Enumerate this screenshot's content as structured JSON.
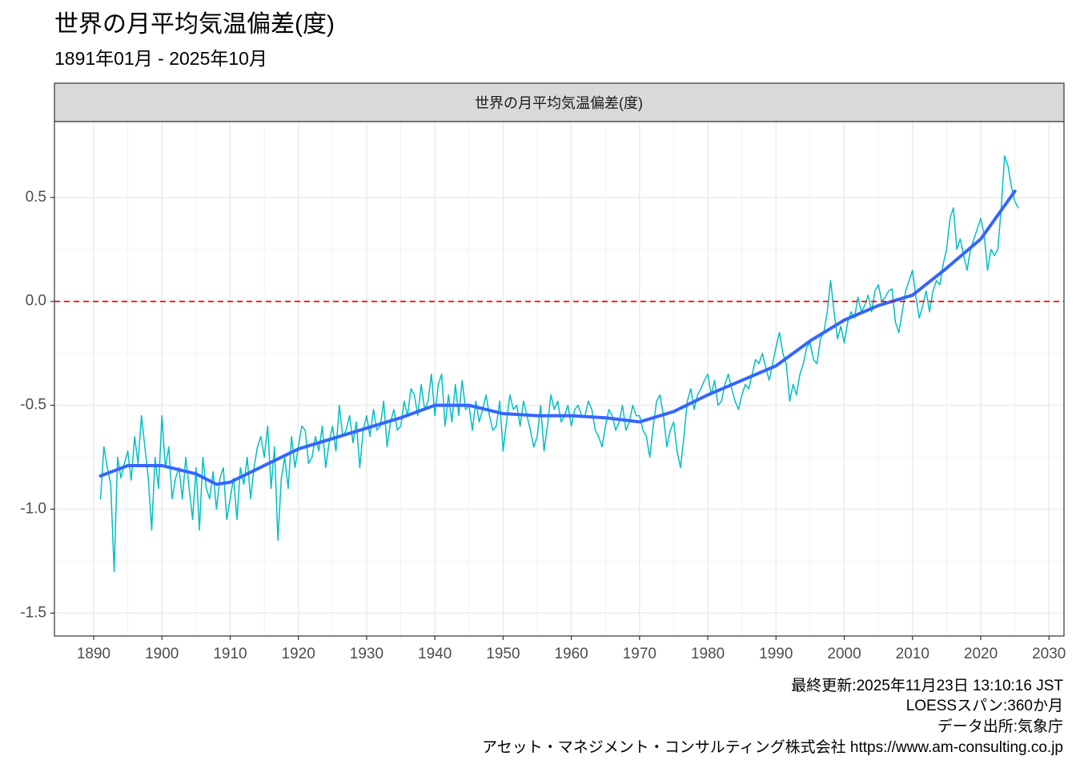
{
  "chart_data": {
    "type": "line",
    "title": "世界の月平均気温偏差(度)",
    "subtitle": "1891年01月 - 2025年10月",
    "panel_label": "世界の月平均気温偏差(度)",
    "caption": [
      "最終更新:2025年11月23日 13:10:16 JST",
      "LOESSスパン:360か月",
      "データ出所:気象庁",
      "アセット・マネジメント・コンサルティング株式会社 https://www.am-consulting.co.jp"
    ],
    "xlim": [
      1884.25,
      2032.2
    ],
    "xticks": [
      1890,
      1900,
      1910,
      1920,
      1930,
      1940,
      1950,
      1960,
      1970,
      1980,
      1990,
      2000,
      2010,
      2020,
      2030
    ],
    "ylim": [
      -1.61,
      0.865
    ],
    "yticks": [
      {
        "value": -1.5,
        "label": "-1.5"
      },
      {
        "value": -1,
        "label": "-1.0"
      },
      {
        "value": -0.5,
        "label": "-0.5"
      },
      {
        "value": 0,
        "label": "0.0"
      },
      {
        "value": 0.5,
        "label": "0.5"
      }
    ],
    "grid": true,
    "hline": {
      "value": 0,
      "color": "#ff0000"
    },
    "series": [
      {
        "color": "#00bfc4",
        "width": 1.5,
        "x": [
          1891,
          1891.5,
          1892,
          1892.5,
          1893,
          1893.5,
          1894,
          1894.5,
          1895,
          1895.5,
          1896,
          1896.5,
          1897,
          1897.5,
          1898,
          1898.5,
          1899,
          1899.5,
          1900,
          1900.5,
          1901,
          1901.5,
          1902,
          1902.5,
          1903,
          1903.5,
          1904,
          1904.5,
          1905,
          1905.5,
          1906,
          1906.5,
          1907,
          1907.5,
          1908,
          1908.5,
          1909,
          1909.5,
          1910,
          1910.5,
          1911,
          1911.5,
          1912,
          1912.5,
          1913,
          1913.5,
          1914,
          1914.5,
          1915,
          1915.5,
          1916,
          1916.5,
          1917,
          1917.5,
          1918,
          1918.5,
          1919,
          1919.5,
          1920,
          1920.5,
          1921,
          1921.5,
          1922,
          1922.5,
          1923,
          1923.5,
          1924,
          1924.5,
          1925,
          1925.5,
          1926,
          1926.5,
          1927,
          1927.5,
          1928,
          1928.5,
          1929,
          1929.5,
          1930,
          1930.5,
          1931,
          1931.5,
          1932,
          1932.5,
          1933,
          1933.5,
          1934,
          1934.5,
          1935,
          1935.5,
          1936,
          1936.5,
          1937,
          1937.5,
          1938,
          1938.5,
          1939,
          1939.5,
          1940,
          1940.5,
          1941,
          1941.5,
          1942,
          1942.5,
          1943,
          1943.5,
          1944,
          1944.5,
          1945,
          1945.5,
          1946,
          1946.5,
          1947,
          1947.5,
          1948,
          1948.5,
          1949,
          1949.5,
          1950,
          1950.5,
          1951,
          1951.5,
          1952,
          1952.5,
          1953,
          1953.5,
          1954,
          1954.5,
          1955,
          1955.5,
          1956,
          1956.5,
          1957,
          1957.5,
          1958,
          1958.5,
          1959,
          1959.5,
          1960,
          1960.5,
          1961,
          1961.5,
          1962,
          1962.5,
          1963,
          1963.5,
          1964,
          1964.5,
          1965,
          1965.5,
          1966,
          1966.5,
          1967,
          1967.5,
          1968,
          1968.5,
          1969,
          1969.5,
          1970,
          1970.5,
          1971,
          1971.5,
          1972,
          1972.5,
          1973,
          1973.5,
          1974,
          1974.5,
          1975,
          1975.5,
          1976,
          1976.5,
          1977,
          1977.5,
          1978,
          1978.5,
          1979,
          1979.5,
          1980,
          1980.5,
          1981,
          1981.5,
          1982,
          1982.5,
          1983,
          1983.5,
          1984,
          1984.5,
          1985,
          1985.5,
          1986,
          1986.5,
          1987,
          1987.5,
          1988,
          1988.5,
          1989,
          1989.5,
          1990,
          1990.5,
          1991,
          1991.5,
          1992,
          1992.5,
          1993,
          1993.5,
          1994,
          1994.5,
          1995,
          1995.5,
          1996,
          1996.5,
          1997,
          1997.5,
          1998,
          1998.5,
          1999,
          1999.5,
          2000,
          2000.5,
          2001,
          2001.5,
          2002,
          2002.5,
          2003,
          2003.5,
          2004,
          2004.5,
          2005,
          2005.5,
          2006,
          2006.5,
          2007,
          2007.5,
          2008,
          2008.5,
          2009,
          2009.5,
          2010,
          2010.5,
          2011,
          2011.5,
          2012,
          2012.5,
          2013,
          2013.5,
          2014,
          2014.5,
          2015,
          2015.5,
          2016,
          2016.5,
          2017,
          2017.5,
          2018,
          2018.5,
          2019,
          2019.5,
          2020,
          2020.5,
          2021,
          2021.5,
          2022,
          2022.5,
          2023,
          2023.5,
          2024,
          2024.5,
          2025,
          2025.5
        ],
        "values": [
          -0.95,
          -0.7,
          -0.8,
          -0.88,
          -1.3,
          -0.75,
          -0.85,
          -0.78,
          -0.72,
          -0.86,
          -0.65,
          -0.78,
          -0.55,
          -0.7,
          -0.85,
          -1.1,
          -0.75,
          -0.9,
          -0.55,
          -0.8,
          -0.7,
          -0.95,
          -0.85,
          -0.8,
          -0.95,
          -0.75,
          -0.9,
          -1.05,
          -0.8,
          -1.1,
          -0.75,
          -0.9,
          -0.95,
          -0.82,
          -1.0,
          -0.85,
          -0.8,
          -1.05,
          -0.95,
          -0.85,
          -1.05,
          -0.8,
          -0.88,
          -0.75,
          -0.95,
          -0.8,
          -0.7,
          -0.65,
          -0.75,
          -0.6,
          -0.9,
          -0.7,
          -1.15,
          -0.85,
          -0.75,
          -0.9,
          -0.65,
          -0.8,
          -0.7,
          -0.6,
          -0.62,
          -0.78,
          -0.75,
          -0.65,
          -0.72,
          -0.6,
          -0.8,
          -0.68,
          -0.6,
          -0.72,
          -0.5,
          -0.65,
          -0.62,
          -0.55,
          -0.68,
          -0.58,
          -0.8,
          -0.62,
          -0.55,
          -0.65,
          -0.52,
          -0.62,
          -0.6,
          -0.48,
          -0.7,
          -0.58,
          -0.52,
          -0.62,
          -0.6,
          -0.48,
          -0.55,
          -0.42,
          -0.45,
          -0.55,
          -0.4,
          -0.52,
          -0.48,
          -0.35,
          -0.55,
          -0.4,
          -0.35,
          -0.6,
          -0.45,
          -0.58,
          -0.4,
          -0.55,
          -0.38,
          -0.52,
          -0.5,
          -0.62,
          -0.48,
          -0.58,
          -0.52,
          -0.45,
          -0.55,
          -0.62,
          -0.6,
          -0.48,
          -0.72,
          -0.58,
          -0.45,
          -0.52,
          -0.5,
          -0.6,
          -0.48,
          -0.55,
          -0.62,
          -0.7,
          -0.65,
          -0.5,
          -0.72,
          -0.6,
          -0.45,
          -0.52,
          -0.48,
          -0.58,
          -0.55,
          -0.5,
          -0.6,
          -0.52,
          -0.5,
          -0.55,
          -0.55,
          -0.48,
          -0.52,
          -0.62,
          -0.65,
          -0.7,
          -0.6,
          -0.52,
          -0.55,
          -0.62,
          -0.58,
          -0.5,
          -0.62,
          -0.58,
          -0.5,
          -0.55,
          -0.55,
          -0.62,
          -0.65,
          -0.75,
          -0.6,
          -0.48,
          -0.45,
          -0.55,
          -0.7,
          -0.62,
          -0.58,
          -0.72,
          -0.8,
          -0.65,
          -0.48,
          -0.42,
          -0.52,
          -0.45,
          -0.42,
          -0.38,
          -0.35,
          -0.45,
          -0.38,
          -0.5,
          -0.48,
          -0.4,
          -0.35,
          -0.42,
          -0.48,
          -0.52,
          -0.45,
          -0.4,
          -0.42,
          -0.35,
          -0.28,
          -0.3,
          -0.25,
          -0.32,
          -0.38,
          -0.3,
          -0.22,
          -0.15,
          -0.25,
          -0.3,
          -0.48,
          -0.4,
          -0.45,
          -0.35,
          -0.3,
          -0.22,
          -0.2,
          -0.28,
          -0.3,
          -0.18,
          -0.15,
          -0.05,
          0.1,
          -0.05,
          -0.18,
          -0.12,
          -0.2,
          -0.1,
          -0.05,
          -0.08,
          0.02,
          -0.05,
          -0.02,
          0.03,
          -0.05,
          0.05,
          0.08,
          0.0,
          0.02,
          0.05,
          0.06,
          -0.1,
          -0.15,
          -0.05,
          0.05,
          0.1,
          0.15,
          0.02,
          -0.08,
          -0.02,
          0.05,
          -0.05,
          0.05,
          0.1,
          0.08,
          0.18,
          0.25,
          0.4,
          0.45,
          0.25,
          0.3,
          0.22,
          0.15,
          0.25,
          0.3,
          0.35,
          0.4,
          0.32,
          0.15,
          0.25,
          0.22,
          0.25,
          0.45,
          0.7,
          0.65,
          0.55,
          0.48,
          0.45
        ]
      },
      {
        "color": "#3366ff",
        "width": 4,
        "x": [
          1891,
          1895,
          1900,
          1905,
          1908,
          1910,
          1915,
          1920,
          1925,
          1930,
          1935,
          1940,
          1945,
          1950,
          1955,
          1960,
          1965,
          1970,
          1975,
          1980,
          1985,
          1990,
          1995,
          2000,
          2005,
          2010,
          2015,
          2020,
          2025
        ],
        "values": [
          -0.84,
          -0.79,
          -0.79,
          -0.83,
          -0.88,
          -0.87,
          -0.79,
          -0.71,
          -0.66,
          -0.61,
          -0.56,
          -0.5,
          -0.5,
          -0.54,
          -0.55,
          -0.55,
          -0.56,
          -0.58,
          -0.53,
          -0.45,
          -0.38,
          -0.31,
          -0.19,
          -0.09,
          -0.02,
          0.03,
          0.16,
          0.3,
          0.53
        ]
      }
    ]
  }
}
